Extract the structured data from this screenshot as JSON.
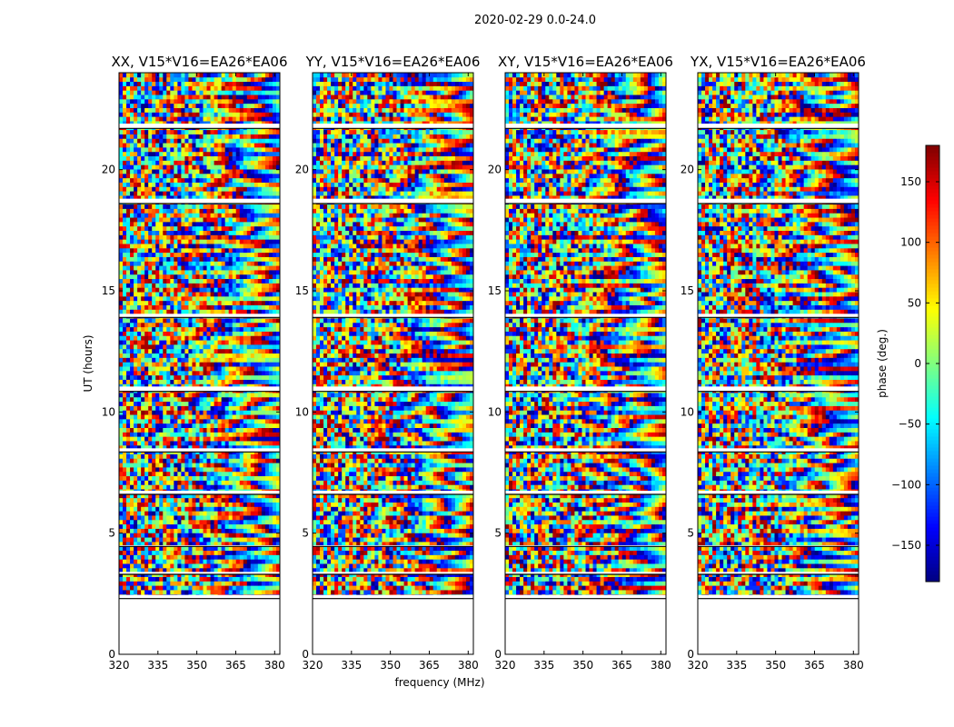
{
  "suptitle": "2020-02-29 0.0-24.0",
  "chart_data": {
    "type": "heatmap",
    "panels": [
      {
        "title": "XX, V15*V16=EA26*EA06",
        "seed": 11
      },
      {
        "title": "YY, V15*V16=EA26*EA06",
        "seed": 23
      },
      {
        "title": "XY, V15*V16=EA26*EA06",
        "seed": 37
      },
      {
        "title": "YX, V15*V16=EA26*EA06",
        "seed": 53
      }
    ],
    "xlabel": "frequency (MHz)",
    "ylabel": "UT (hours)",
    "xlim": [
      320,
      382
    ],
    "ylim": [
      0,
      24
    ],
    "xticks": [
      320,
      335,
      350,
      365,
      380
    ],
    "yticks": [
      0,
      5,
      10,
      15,
      20
    ],
    "data_ut_range": [
      2.3,
      24
    ],
    "colorbar": {
      "label": "phase (deg.)",
      "range": [
        -180,
        180
      ],
      "ticks": [
        -150,
        -100,
        -50,
        0,
        50,
        100,
        150
      ],
      "ticklabels": [
        "−150",
        "−100",
        "−50",
        "0",
        "50",
        "100",
        "150"
      ],
      "colormap": "jet"
    },
    "flagged_ut_bands": [
      [
        2.3,
        2.45
      ],
      [
        3.3,
        3.4
      ],
      [
        4.45,
        4.5
      ],
      [
        6.6,
        6.75
      ],
      [
        8.35,
        8.5
      ],
      [
        10.85,
        11.05
      ],
      [
        13.9,
        14.05
      ],
      [
        18.6,
        18.8
      ],
      [
        21.7,
        21.9
      ]
    ]
  }
}
